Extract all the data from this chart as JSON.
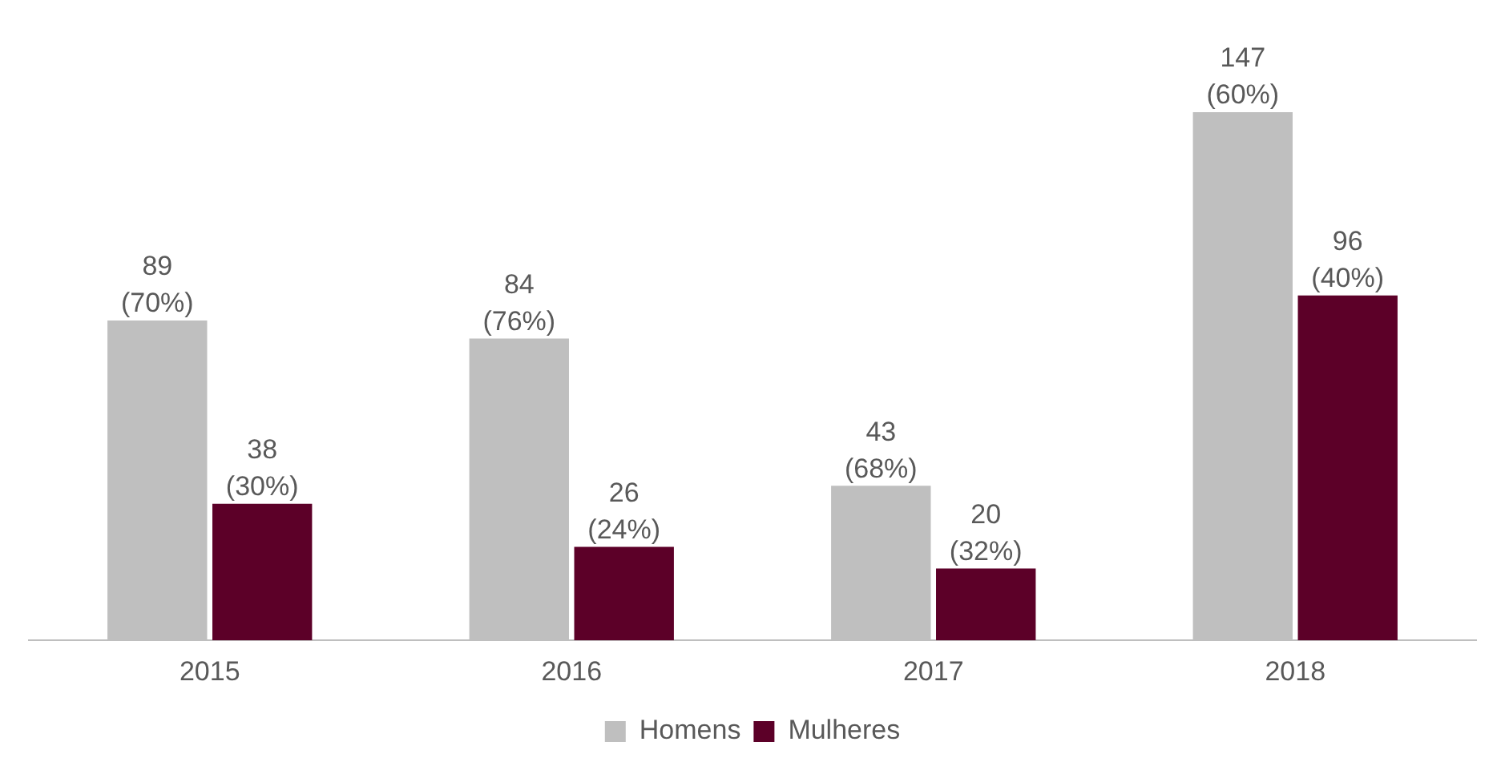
{
  "chart_data": {
    "type": "bar",
    "categories": [
      "2015",
      "2016",
      "2017",
      "2018"
    ],
    "series": [
      {
        "name": "Homens",
        "color": "#bfbfbf",
        "values": [
          89,
          84,
          43,
          147
        ],
        "value_labels": [
          "89\n(70%)",
          "84\n(76%)",
          "43\n(68%)",
          "147\n(60%)"
        ]
      },
      {
        "name": "Mulheres",
        "color": "#5c0028",
        "values": [
          38,
          26,
          20,
          96
        ],
        "value_labels": [
          "38\n(30%)",
          "26\n(24%)",
          "20\n(32%)",
          "96\n(40%)"
        ]
      }
    ],
    "legend": "bottom",
    "grid": false
  }
}
